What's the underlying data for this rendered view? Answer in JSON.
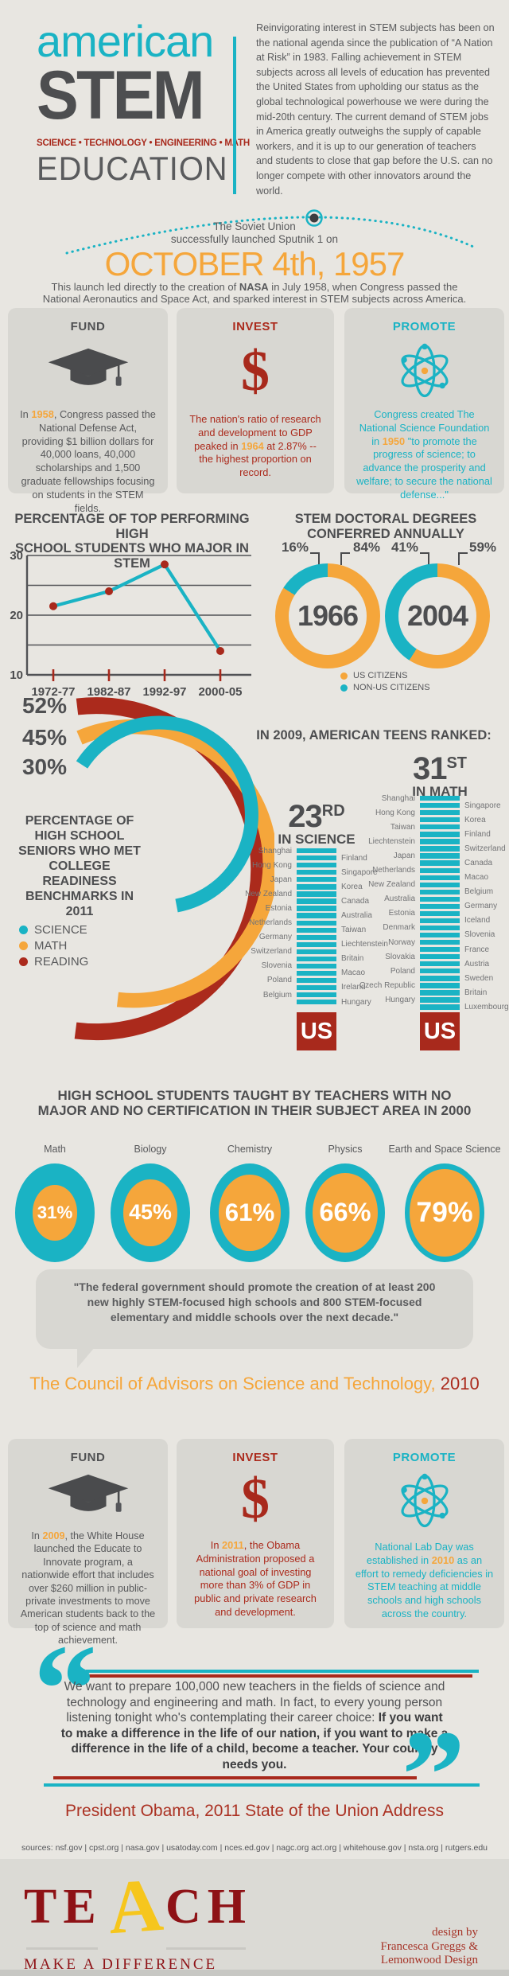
{
  "colors": {
    "teal": "#1ab3c4",
    "orange": "#f5a63b",
    "dark_red": "#a8291c",
    "red_text": "#ab2a1c",
    "gray_text": "#58595b",
    "heading": "#4d4e50",
    "label_gray": "#737476",
    "background": "#e8e6e1",
    "card_bg": "#d8d7d2",
    "footer_bg": "#dbdad5",
    "maroon": "#8e1216",
    "yellow": "#f6c61d",
    "near_black": "#3c3d3f"
  },
  "header": {
    "logo_line1": "american",
    "logo_line2": "STEM",
    "logo_tagline": "SCIENCE • TECHNOLOGY • ENGINEERING • MATH",
    "logo_line3": "EDUCATION",
    "intro": "Reinvigorating interest in STEM subjects has been on the national agenda since the publication of “A Nation at Risk” in 1983. Falling achievement in STEM subjects across all levels of education has prevented the United States from upholding our status as the global technological powerhouse we were during the mid-20th century. The current demand of STEM jobs in America greatly outweighs the supply of capable workers, and it is up to our generation of teachers and students to close that gap before the U.S. can no longer compete with other innovators around the world."
  },
  "sputnik": {
    "intro_line1": "The Soviet Union",
    "intro_line2": "successfully launched Sputnik 1 on",
    "date": "OCTOBER 4th, 1957",
    "after_pre": "This launch led directly to the creation of ",
    "after_bold": "NASA",
    "after_post": " in July 1958, when Congress passed the National Aeronautics and Space Act, and sparked interest in STEM subjects across America."
  },
  "cards_1950s": [
    {
      "title": "FUND",
      "icon": "graduation-cap-icon",
      "pre": "In ",
      "year": "1958",
      "post": ", Congress passed the National Defense Act, providing $1 billion dollars for 40,000 loans, 40,000 scholarships and 1,500 graduate fellowships focusing on students in the STEM fields."
    },
    {
      "title": "INVEST",
      "icon": "dollar-icon",
      "pre": "The nation's ratio of research and development to GDP peaked in ",
      "year": "1964",
      "post": " at 2.87% -- the highest proportion on record."
    },
    {
      "title": "PROMOTE",
      "icon": "atom-icon",
      "pre": "Congress created The National Science Foundation in ",
      "year": "1950",
      "post": " \"to promote the progress of science; to advance the prosperity and welfare; to secure the national defense...\""
    }
  ],
  "chart_data": [
    {
      "id": "stem-majors",
      "type": "line",
      "title_line1": "PERCENTAGE OF TOP PERFORMING HIGH",
      "title_line2": "SCHOOL STUDENTS WHO MAJOR IN STEM",
      "categories": [
        "1972-77",
        "1982-87",
        "1992-97",
        "2000-05"
      ],
      "values": [
        21.5,
        24,
        28.5,
        14
      ],
      "ylim": [
        10,
        30
      ],
      "yticks": [
        30,
        20,
        10
      ],
      "gridlines": [
        30,
        25,
        20,
        15,
        10
      ],
      "line_color": "#1ab3c4",
      "point_color": "#a8291c",
      "grid_on": true
    },
    {
      "id": "doctoral-degrees",
      "type": "pie",
      "title_line1": "STEM DOCTORAL DEGREES",
      "title_line2": "CONFERRED ANNUALLY",
      "donuts": [
        {
          "year": "1966",
          "us_pct": 84,
          "non_us_pct": 16,
          "us_label": "84%",
          "non_us_label": "16%"
        },
        {
          "year": "2004",
          "us_pct": 59,
          "non_us_pct": 41,
          "us_label": "59%",
          "non_us_label": "41%"
        }
      ],
      "colors": {
        "us": "#f5a63b",
        "non_us": "#1ab3c4"
      },
      "legend": [
        {
          "label": "US CITIZENS",
          "color": "#f5a63b"
        },
        {
          "label": "NON-US CITIZENS",
          "color": "#1ab3c4"
        }
      ],
      "legend_position": "bottom"
    },
    {
      "id": "college-readiness",
      "type": "arc",
      "caption_lines": [
        "PERCENTAGE OF",
        "HIGH SCHOOL",
        "SENIORS WHO MET",
        "COLLEGE READINESS",
        "BENCHMARKS IN 2011"
      ],
      "series": [
        {
          "label": "READING",
          "value": 52,
          "display": "52%",
          "color": "#ab2a1c"
        },
        {
          "label": "MATH",
          "value": 45,
          "display": "45%",
          "color": "#f5a63b"
        },
        {
          "label": "SCIENCE",
          "value": 30,
          "display": "30%",
          "color": "#1ab3c4"
        }
      ],
      "legend": [
        {
          "label": "SCIENCE",
          "color": "#1ab3c4"
        },
        {
          "label": "MATH",
          "color": "#f5a63b"
        },
        {
          "label": "READING",
          "color": "#ab2a1c"
        }
      ]
    },
    {
      "id": "rankings-science",
      "type": "bar",
      "section_title": "IN 2009, AMERICAN TEENS RANKED:",
      "rank_big": "23",
      "rank_sup": "RD",
      "subtitle": "IN SCIENCE",
      "us_label": "US",
      "bar_color": "#1ab3c4",
      "us_box_color": "#a8291c",
      "countries": [
        "Shanghai",
        "Finland",
        "Hong Kong",
        "Singapore",
        "Japan",
        "Korea",
        "New Zealand",
        "Canada",
        "Estonia",
        "Australia",
        "Netherlands",
        "Taiwan",
        "Germany",
        "Liechtenstein",
        "Switzerland",
        "Britain",
        "Slovenia",
        "Macao",
        "Poland",
        "Ireland",
        "Belgium",
        "Hungary"
      ]
    },
    {
      "id": "rankings-math",
      "type": "bar",
      "rank_big": "31",
      "rank_sup": "ST",
      "subtitle": "IN MATH",
      "us_label": "US",
      "bar_color": "#1ab3c4",
      "us_box_color": "#a8291c",
      "countries": [
        "Shanghai",
        "Singapore",
        "Hong Kong",
        "Korea",
        "Taiwan",
        "Finland",
        "Liechtenstein",
        "Switzerland",
        "Japan",
        "Canada",
        "Netherlands",
        "Macao",
        "New Zealand",
        "Belgium",
        "Australia",
        "Germany",
        "Estonia",
        "Iceland",
        "Denmark",
        "Slovenia",
        "Norway",
        "France",
        "Slovakia",
        "Austria",
        "Poland",
        "Sweden",
        "Czech Republic",
        "Britain",
        "Hungary",
        "Luxembourg"
      ]
    },
    {
      "id": "uncertified-teachers",
      "type": "bubble",
      "title_line1": "HIGH SCHOOL STUDENTS TAUGHT BY TEACHERS WITH NO",
      "title_line2": "MAJOR AND NO CERTIFICATION IN THEIR SUBJECT AREA IN 2000",
      "categories": [
        "Math",
        "Biology",
        "Chemistry",
        "Physics",
        "Earth and Space Science"
      ],
      "values": [
        31,
        45,
        61,
        66,
        79
      ],
      "display": [
        "31%",
        "45%",
        "61%",
        "66%",
        "79%"
      ],
      "outer_color": "#1ab3c4",
      "inner_color": "#f5a63b"
    }
  ],
  "council_quote": {
    "text": "\"The federal government should promote the creation of at least 200 new highly STEM-focused high schools and 800 STEM-focused elementary and middle schools over the next decade.\"",
    "attribution": "The Council of Advisors on Science and Technology, ",
    "attribution_year": "2010"
  },
  "cards_2000s": [
    {
      "title": "FUND",
      "icon": "graduation-cap-icon",
      "pre": "In ",
      "year": "2009",
      "post": ", the White House launched the Educate to Innovate program, a nationwide effort that includes over $260 million in public-private investments to move American students back to the top of science and math achievement."
    },
    {
      "title": "INVEST",
      "icon": "dollar-icon",
      "pre": "In ",
      "year": "2011",
      "post": ", the Obama Administration proposed a national goal of investing more than 3% of GDP in public and private research and development."
    },
    {
      "title": "PROMOTE",
      "icon": "atom-icon",
      "pre": "National Lab Day was established in ",
      "year": "2010",
      "post": " as an effort to remedy deficiencies in STEM teaching at middle schools and high schools across the country."
    }
  ],
  "obama_quote": {
    "regular": "We want to prepare 100,000 new teachers in the fields of science and technology and engineering and math. In fact, to every young person listening tonight who's contemplating their career choice: ",
    "bold": "If you want to make a difference in the life of our nation, if you want to make a difference in the life of a child, become a teacher. Your country needs you.",
    "attribution": "President Obama, 2011 State of the Union Address"
  },
  "sources": "sources: nsf.gov | cpst.org | nasa.gov | usatoday.com | nces.ed.gov | nagc.org act.org | whitehouse.gov | nsta.org | rutgers.edu",
  "footer": {
    "teach_te": "TE",
    "teach_a": "A",
    "teach_ch": "CH",
    "tagline": "MAKE A DIFFERENCE",
    "credit_line1": "design by",
    "credit_line2": "Francesca Greggs &",
    "credit_line3": "Lemonwood Design"
  }
}
